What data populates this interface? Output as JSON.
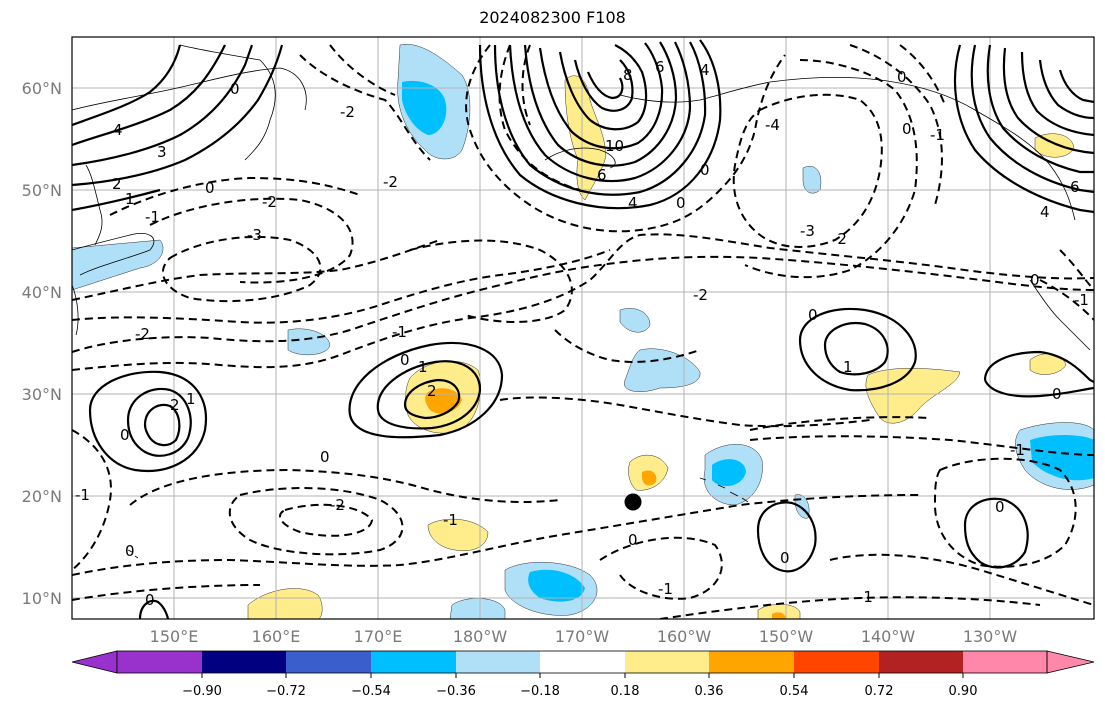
{
  "title": "2024082300 F108",
  "lat_ticks": [
    "60°N",
    "50°N",
    "40°N",
    "30°N",
    "20°N",
    "10°N"
  ],
  "lon_ticks": [
    "150°E",
    "160°E",
    "170°E",
    "180°W",
    "170°W",
    "160°W",
    "150°W",
    "140°W",
    "130°W"
  ],
  "colorbar": {
    "ticks": [
      "−0.90",
      "−0.72",
      "−0.54",
      "−0.36",
      "−0.18",
      "0.18",
      "0.36",
      "0.54",
      "0.72",
      "0.90"
    ],
    "colors": {
      "under": "#9932cc",
      "bins": [
        "#000080",
        "#3a5fcd",
        "#00bfff",
        "#b0e0f8",
        "#ffffff",
        "#ffec8b",
        "#ffa500",
        "#ff4500",
        "#b22222"
      ],
      "over": "#ff88aa",
      "first_bin": "#9932cc"
    }
  },
  "contour_labels": [
    "-4",
    "-3",
    "-2",
    "-1",
    "0",
    "1",
    "2",
    "3",
    "4",
    "6",
    "8",
    "10"
  ],
  "marker": "storm-position-dot"
}
